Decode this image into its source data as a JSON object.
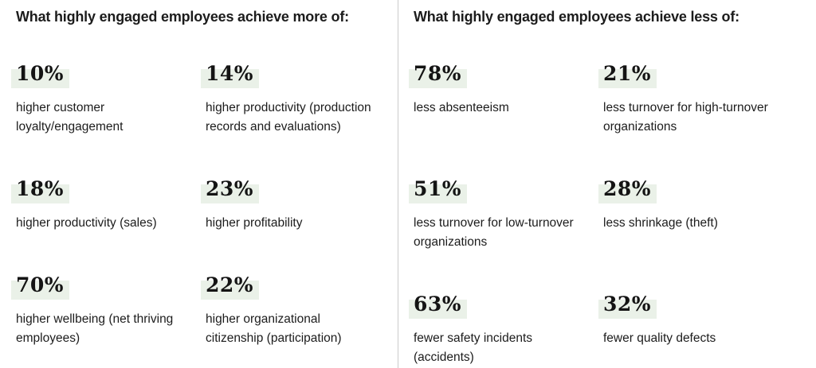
{
  "theme": {
    "background": "#ffffff",
    "text_color": "#1c1c1c",
    "value_color": "#141414",
    "highlight_color": "#eaf1e8",
    "divider_color": "#cccccc"
  },
  "columns": [
    {
      "heading": "What highly engaged employees achieve more of:",
      "stats": [
        {
          "value": "10%",
          "label": "higher customer\nloyalty/engagement"
        },
        {
          "value": "14%",
          "label": "higher productivity (production\nrecords and evaluations)"
        },
        {
          "value": "18%",
          "label": "higher productivity (sales)"
        },
        {
          "value": "23%",
          "label": "higher profitability"
        },
        {
          "value": "70%",
          "label": "higher wellbeing (net thriving\nemployees)"
        },
        {
          "value": "22%",
          "label": "higher organizational\ncitizenship (participation)"
        }
      ]
    },
    {
      "heading": "What highly engaged employees achieve less of:",
      "stats": [
        {
          "value": "78%",
          "label": "less absenteeism"
        },
        {
          "value": "21%",
          "label": "less turnover for high-turnover\norganizations"
        },
        {
          "value": "51%",
          "label": "less turnover for low-turnover\norganizations"
        },
        {
          "value": "28%",
          "label": "less shrinkage (theft)"
        },
        {
          "value": "63%",
          "label": "fewer safety incidents\n(accidents)"
        },
        {
          "value": "32%",
          "label": "fewer quality defects"
        }
      ]
    }
  ]
}
